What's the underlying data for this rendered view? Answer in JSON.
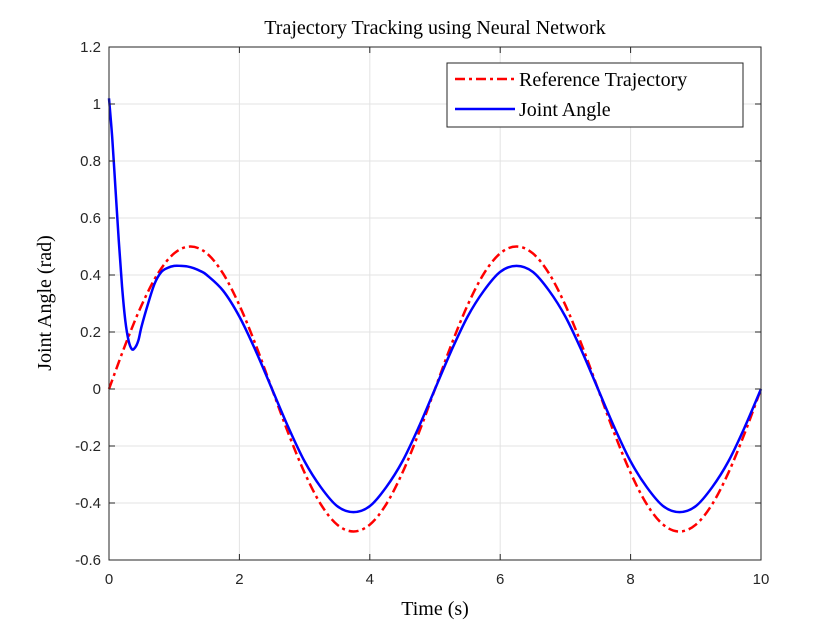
{
  "chart_data": {
    "type": "line",
    "title": "Trajectory Tracking using Neural Network",
    "xlabel": "Time (s)",
    "ylabel": "Joint Angle (rad)",
    "xlim": [
      0,
      10
    ],
    "ylim": [
      -0.6,
      1.2
    ],
    "xticks": [
      0,
      2,
      4,
      6,
      8,
      10
    ],
    "xtick_labels": [
      "0",
      "2",
      "4",
      "6",
      "8",
      "10"
    ],
    "yticks": [
      -0.6,
      -0.4,
      -0.2,
      0,
      0.2,
      0.4,
      0.6,
      0.8,
      1,
      1.2
    ],
    "ytick_labels": [
      "-0.6",
      "-0.4",
      "-0.2",
      "0",
      "0.2",
      "0.4",
      "0.6",
      "0.8",
      "1",
      "1.2"
    ],
    "grid": true,
    "legend_position": "top-right",
    "series": [
      {
        "name": "Reference Trajectory",
        "color": "#ff0000",
        "style": "dash-dot",
        "x": [
          0,
          0.25,
          0.5,
          0.75,
          1,
          1.25,
          1.5,
          1.75,
          2,
          2.25,
          2.5,
          2.75,
          3,
          3.25,
          3.5,
          3.75,
          4,
          4.25,
          4.5,
          4.75,
          5,
          5.25,
          5.5,
          5.75,
          6,
          6.25,
          6.5,
          6.75,
          7,
          7.25,
          7.5,
          7.75,
          8,
          8.25,
          8.5,
          8.75,
          9,
          9.25,
          9.5,
          9.75,
          10
        ],
        "y": [
          0,
          0.155,
          0.294,
          0.405,
          0.476,
          0.5,
          0.476,
          0.405,
          0.294,
          0.155,
          0,
          -0.155,
          -0.294,
          -0.405,
          -0.476,
          -0.5,
          -0.476,
          -0.405,
          -0.294,
          -0.155,
          0,
          0.155,
          0.294,
          0.405,
          0.476,
          0.5,
          0.476,
          0.405,
          0.294,
          0.155,
          0,
          -0.155,
          -0.294,
          -0.405,
          -0.476,
          -0.5,
          -0.476,
          -0.405,
          -0.294,
          -0.155,
          0
        ]
      },
      {
        "name": "Joint Angle",
        "color": "#0000ff",
        "style": "solid",
        "x": [
          0,
          0.05,
          0.1,
          0.15,
          0.2,
          0.25,
          0.3,
          0.35,
          0.4,
          0.45,
          0.5,
          0.6,
          0.7,
          0.8,
          0.9,
          1,
          1.1,
          1.2,
          1.3,
          1.4,
          1.5,
          1.75,
          2,
          2.25,
          2.5,
          2.75,
          3,
          3.25,
          3.5,
          3.75,
          4,
          4.25,
          4.5,
          4.75,
          5,
          5.25,
          5.5,
          5.75,
          6,
          6.25,
          6.5,
          6.75,
          7,
          7.25,
          7.5,
          7.75,
          8,
          8.25,
          8.5,
          8.75,
          9,
          9.25,
          9.5,
          9.75,
          10
        ],
        "y": [
          1.02,
          0.88,
          0.7,
          0.52,
          0.36,
          0.24,
          0.17,
          0.14,
          0.145,
          0.17,
          0.22,
          0.3,
          0.37,
          0.41,
          0.425,
          0.432,
          0.432,
          0.43,
          0.424,
          0.414,
          0.4,
          0.345,
          0.254,
          0.134,
          0,
          -0.134,
          -0.254,
          -0.345,
          -0.411,
          -0.432,
          -0.411,
          -0.345,
          -0.254,
          -0.134,
          0,
          0.134,
          0.254,
          0.345,
          0.411,
          0.432,
          0.411,
          0.345,
          0.254,
          0.134,
          0,
          -0.134,
          -0.254,
          -0.345,
          -0.411,
          -0.432,
          -0.411,
          -0.345,
          -0.254,
          -0.134,
          0
        ]
      }
    ]
  }
}
